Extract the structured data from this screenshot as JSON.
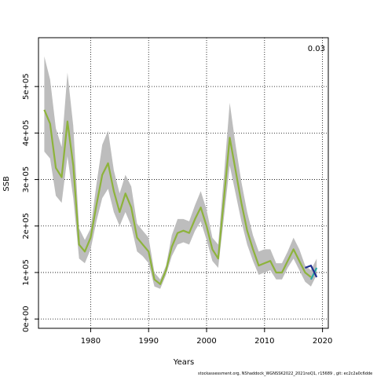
{
  "chart_data": {
    "type": "line",
    "xlabel": "Years",
    "ylabel": "SSB",
    "annotation": "0.03",
    "xlim": [
      1971,
      2021
    ],
    "ylim": [
      -20000,
      605000
    ],
    "x_ticks": [
      1980,
      1990,
      2000,
      2010,
      2020
    ],
    "y_ticks": [
      0,
      100000,
      200000,
      300000,
      400000,
      500000
    ],
    "y_tick_labels": [
      "0e+00",
      "1e+05",
      "2e+05",
      "3e+05",
      "4e+05",
      "5e+05"
    ],
    "grid": true,
    "x": [
      1972,
      1973,
      1974,
      1975,
      1976,
      1977,
      1978,
      1979,
      1980,
      1981,
      1982,
      1983,
      1984,
      1985,
      1986,
      1987,
      1988,
      1989,
      1990,
      1991,
      1992,
      1993,
      1994,
      1995,
      1996,
      1997,
      1998,
      1999,
      2000,
      2001,
      2002,
      2003,
      2004,
      2005,
      2006,
      2007,
      2008,
      2009,
      2010,
      2011,
      2012,
      2013,
      2014,
      2015,
      2016,
      2017,
      2018,
      2019
    ],
    "series": [
      {
        "values": [
          450000,
          420000,
          325000,
          305000,
          425000,
          330000,
          160000,
          145000,
          175000,
          245000,
          310000,
          335000,
          275000,
          230000,
          270000,
          240000,
          175000,
          160000,
          145000,
          85000,
          75000,
          105000,
          155000,
          185000,
          190000,
          185000,
          215000,
          240000,
          200000,
          150000,
          130000,
          260000,
          390000,
          320000,
          250000,
          190000,
          150000,
          115000,
          120000,
          125000,
          100000,
          100000,
          125000,
          150000,
          125000,
          100000,
          90000,
          null
        ]
      },
      {
        "values": [
          null,
          null,
          null,
          null,
          null,
          null,
          null,
          null,
          null,
          null,
          null,
          null,
          null,
          null,
          null,
          null,
          null,
          null,
          null,
          null,
          null,
          null,
          null,
          null,
          null,
          null,
          null,
          null,
          null,
          null,
          null,
          null,
          null,
          null,
          null,
          null,
          null,
          null,
          null,
          null,
          null,
          null,
          null,
          null,
          null,
          null,
          85000,
          110000
        ]
      },
      {
        "values": [
          null,
          null,
          null,
          null,
          null,
          null,
          null,
          null,
          null,
          null,
          null,
          null,
          null,
          null,
          null,
          null,
          null,
          null,
          null,
          null,
          null,
          null,
          null,
          null,
          null,
          null,
          null,
          null,
          null,
          null,
          null,
          null,
          null,
          null,
          null,
          null,
          null,
          null,
          null,
          null,
          null,
          null,
          null,
          null,
          null,
          110000,
          115000,
          90000
        ]
      }
    ],
    "band_upper": [
      565000,
      515000,
      410000,
      370000,
      530000,
      415000,
      195000,
      170000,
      195000,
      290000,
      375000,
      405000,
      320000,
      270000,
      310000,
      285000,
      205000,
      190000,
      175000,
      100000,
      85000,
      115000,
      180000,
      215000,
      215000,
      210000,
      245000,
      275000,
      235000,
      175000,
      160000,
      310000,
      465000,
      375000,
      295000,
      230000,
      180000,
      145000,
      150000,
      150000,
      120000,
      120000,
      145000,
      175000,
      150000,
      115000,
      105000,
      130000
    ],
    "band_lower": [
      360000,
      345000,
      265000,
      250000,
      350000,
      260000,
      130000,
      120000,
      150000,
      210000,
      260000,
      280000,
      230000,
      200000,
      230000,
      200000,
      145000,
      135000,
      120000,
      70000,
      65000,
      95000,
      135000,
      160000,
      165000,
      160000,
      190000,
      210000,
      170000,
      125000,
      110000,
      220000,
      330000,
      270000,
      210000,
      160000,
      125000,
      95000,
      100000,
      105000,
      85000,
      85000,
      110000,
      130000,
      105000,
      80000,
      70000,
      95000
    ]
  },
  "footer_text": "stockassessment.org, NShaddock_WGNSSK2022_2021noQ1, r15689 , git: ec2c2a0c6dde"
}
